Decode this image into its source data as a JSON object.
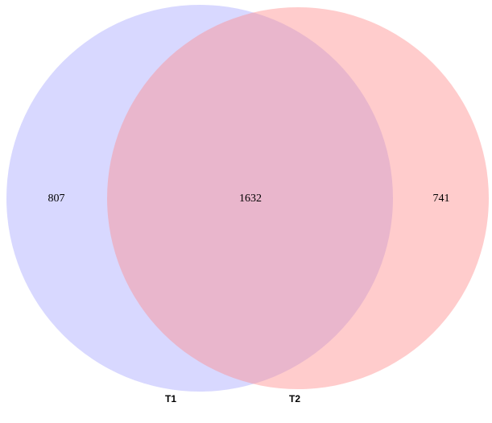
{
  "diagram": {
    "type": "venn",
    "sets": [
      {
        "name": "T1",
        "color": "#8f8fff",
        "opacity": 0.35,
        "only_count": "807"
      },
      {
        "name": "T2",
        "color": "#fe8f8f",
        "opacity": 0.45,
        "only_count": "741"
      }
    ],
    "intersection": {
      "count": "1632"
    }
  }
}
